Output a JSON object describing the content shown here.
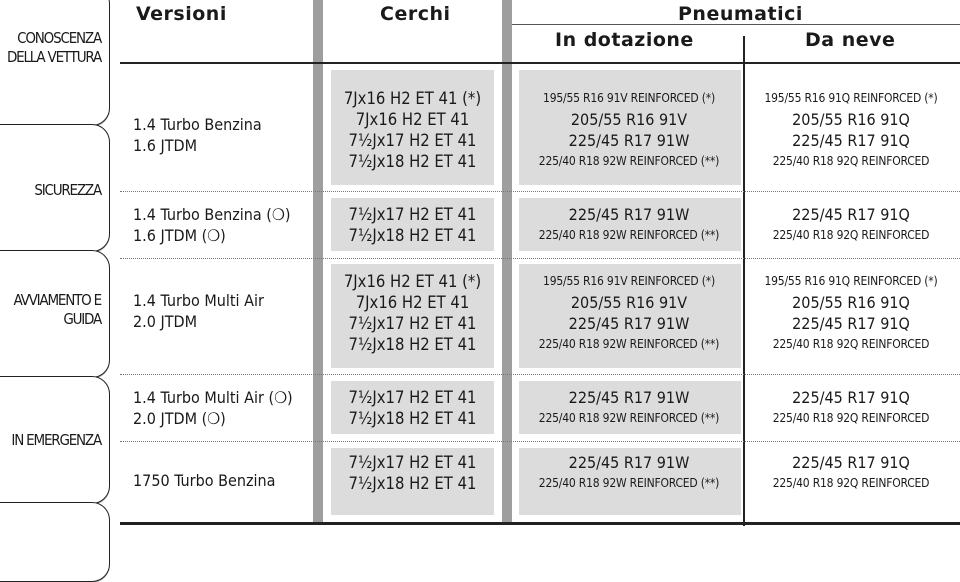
{
  "sidebar": {
    "tabs": [
      {
        "label": "CONOSCENZA DELLA VETTURA"
      },
      {
        "label": "SICUREZZA"
      },
      {
        "label": "AVVIAMENTO E GUIDA"
      },
      {
        "label": "IN EMERGENZA"
      }
    ]
  },
  "table": {
    "headers": {
      "versioni": "Versioni",
      "cerchi": "Cerchi",
      "pneumatici": "Pneumatici",
      "in_dotazione": "In dotazione",
      "da_neve": "Da neve"
    },
    "rows": [
      {
        "versioni": [
          "1.4 Turbo Benzina",
          "1.6 JTDM"
        ],
        "cerchi": [
          "7Jx16 H2 ET 41 (*)",
          "7Jx16 H2 ET 41",
          "7½Jx17 H2 ET 41",
          "7½Jx18 H2 ET 41"
        ],
        "dotazione": [
          "195/55 R16 91V REINFORCED (*)",
          "205/55 R16 91V",
          "225/45 R17 91W",
          "225/40 R18 92W REINFORCED (**)"
        ],
        "neve": [
          "195/55 R16 91Q REINFORCED (*)",
          "205/55 R16 91Q",
          "225/45 R17 91Q",
          "225/40 R18 92Q REINFORCED"
        ]
      },
      {
        "versioni": [
          "1.4 Turbo Benzina (❍)",
          "1.6 JTDM (❍)"
        ],
        "cerchi": [
          "7½Jx17 H2 ET 41",
          "7½Jx18 H2 ET 41"
        ],
        "dotazione": [
          "225/45 R17 91W",
          "225/40 R18 92W REINFORCED (**)"
        ],
        "neve": [
          "225/45 R17 91Q",
          "225/40 R18 92Q REINFORCED"
        ]
      },
      {
        "versioni": [
          "1.4 Turbo Multi Air",
          "2.0 JTDM"
        ],
        "cerchi": [
          "7Jx16 H2 ET 41 (*)",
          "7Jx16 H2 ET 41",
          "7½Jx17 H2 ET 41",
          "7½Jx18 H2 ET 41"
        ],
        "dotazione": [
          "195/55 R16 91V REINFORCED (*)",
          "205/55 R16 91V",
          "225/45 R17 91W",
          "225/40 R18 92W REINFORCED (**)"
        ],
        "neve": [
          "195/55 R16 91Q REINFORCED (*)",
          "205/55 R16 91Q",
          "225/45 R17 91Q",
          "225/40 R18 92Q REINFORCED"
        ]
      },
      {
        "versioni": [
          "1.4 Turbo Multi Air (❍)",
          "2.0 JTDM (❍)"
        ],
        "cerchi": [
          "7½Jx17 H2 ET 41",
          "7½Jx18 H2 ET 41"
        ],
        "dotazione": [
          "225/45 R17 91W",
          "225/40 R18 92W REINFORCED (**)"
        ],
        "neve": [
          "225/45 R17 91Q",
          "225/40 R18 92Q REINFORCED"
        ]
      },
      {
        "versioni": [
          "1750 Turbo Benzina"
        ],
        "cerchi": [
          "7½Jx17 H2 ET 41",
          "7½Jx18 H2 ET 41"
        ],
        "dotazione": [
          "225/45 R17 91W",
          "225/40 R18 92W REINFORCED (**)"
        ],
        "neve": [
          "225/45 R17 91Q",
          "225/40 R18 92Q  REINFORCED"
        ]
      }
    ]
  }
}
